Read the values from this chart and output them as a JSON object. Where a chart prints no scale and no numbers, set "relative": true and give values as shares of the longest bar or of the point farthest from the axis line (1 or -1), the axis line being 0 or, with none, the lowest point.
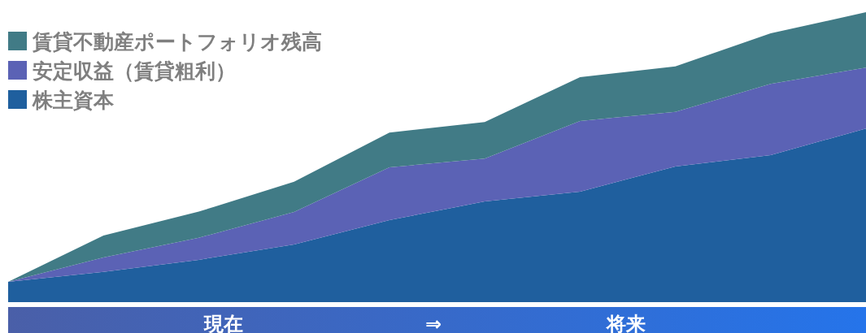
{
  "chart_data": {
    "type": "area",
    "stacked": true,
    "relative": true,
    "legend": "top left",
    "categories": [
      null,
      null,
      null,
      null,
      null,
      null,
      null,
      null,
      null,
      null
    ],
    "series": [
      {
        "name": "株主資本",
        "color": "#1f5f9e",
        "values": [
          0.07,
          0.104,
          0.146,
          0.199,
          0.283,
          0.347,
          0.381,
          0.468,
          0.507,
          0.599
        ]
      },
      {
        "name": "安定収益（賃貸粗利）",
        "color": "#5b62b5",
        "values": [
          0,
          0.05,
          0.076,
          0.112,
          0.182,
          0.148,
          0.244,
          0.188,
          0.246,
          0.21
        ]
      },
      {
        "name": "賃貸不動産ポートフォリオ残高",
        "color": "#417b86",
        "values": [
          0,
          0.076,
          0.09,
          0.104,
          0.12,
          0.126,
          0.151,
          0.157,
          0.174,
          0.191
        ]
      }
    ],
    "annotations": [
      "現在",
      "⇒",
      "将来"
    ]
  }
}
